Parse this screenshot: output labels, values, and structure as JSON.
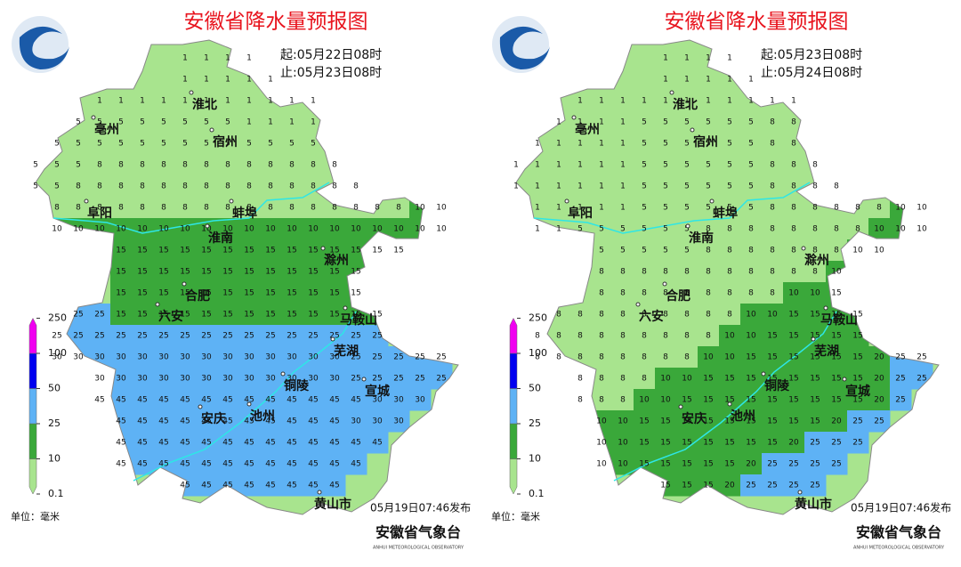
{
  "panels": [
    {
      "title": "安徽省降水量预报图",
      "start": "起:05月22日08时",
      "end": "止:05月23日08时",
      "cities": [
        "淮北",
        "亳州",
        "宿州",
        "阜阳",
        "蚌埠",
        "淮南",
        "滁州",
        "合肥",
        "六安",
        "马鞍山",
        "芜湖",
        "铜陵",
        "宣城",
        "安庆",
        "池州",
        "黄山市"
      ],
      "legend": {
        "levels": [
          0.1,
          10,
          25,
          50,
          100,
          250
        ],
        "colors": [
          "#a8e48e",
          "#3aa83a",
          "#5eb2f5",
          "#0000f0",
          "#f000f0"
        ]
      },
      "unit": "单位：毫米",
      "issued": "05月19日07:46发布",
      "agency": "安徽省气象台",
      "agency_en": "ANHUI METEOROLOGICAL OBSERVATORY",
      "grid": [
        [
          null,
          null,
          null,
          null,
          null,
          null,
          null,
          1,
          1,
          1,
          1,
          null,
          null,
          null,
          null,
          null,
          null,
          null,
          null,
          null
        ],
        [
          null,
          null,
          null,
          null,
          null,
          null,
          null,
          1,
          1,
          1,
          1,
          1,
          null,
          null,
          null,
          null,
          null,
          null,
          null,
          null
        ],
        [
          null,
          null,
          null,
          1,
          1,
          1,
          1,
          1,
          1,
          1,
          1,
          1,
          1,
          1,
          null,
          null,
          null,
          null,
          null,
          null
        ],
        [
          null,
          null,
          5,
          5,
          5,
          5,
          5,
          5,
          5,
          5,
          1,
          1,
          1,
          1,
          null,
          null,
          null,
          null,
          null,
          null
        ],
        [
          null,
          5,
          5,
          5,
          5,
          5,
          5,
          5,
          5,
          5,
          5,
          5,
          5,
          5,
          null,
          null,
          null,
          null,
          null,
          null
        ],
        [
          5,
          5,
          5,
          8,
          8,
          8,
          8,
          8,
          8,
          8,
          8,
          8,
          8,
          8,
          8,
          null,
          null,
          null,
          null,
          null
        ],
        [
          5,
          5,
          8,
          8,
          8,
          8,
          8,
          8,
          8,
          8,
          8,
          8,
          8,
          8,
          8,
          8,
          null,
          null,
          null,
          null
        ],
        [
          null,
          8,
          8,
          8,
          8,
          8,
          8,
          8,
          8,
          8,
          8,
          8,
          8,
          8,
          8,
          8,
          8,
          8,
          10,
          10
        ],
        [
          null,
          10,
          10,
          10,
          10,
          10,
          10,
          10,
          10,
          10,
          10,
          10,
          10,
          10,
          10,
          10,
          10,
          10,
          10,
          10
        ],
        [
          null,
          null,
          null,
          null,
          15,
          15,
          15,
          15,
          15,
          15,
          15,
          15,
          15,
          15,
          15,
          15,
          15,
          15,
          null,
          null
        ],
        [
          null,
          null,
          null,
          null,
          15,
          15,
          15,
          15,
          15,
          15,
          15,
          15,
          15,
          15,
          15,
          15,
          null,
          null,
          null,
          null
        ],
        [
          null,
          null,
          null,
          null,
          15,
          15,
          15,
          15,
          15,
          15,
          15,
          15,
          15,
          15,
          15,
          15,
          null,
          null,
          null,
          null
        ],
        [
          null,
          null,
          25,
          25,
          15,
          15,
          15,
          15,
          15,
          15,
          15,
          15,
          15,
          15,
          15,
          15,
          15,
          null,
          null,
          null
        ],
        [
          null,
          25,
          25,
          25,
          25,
          25,
          25,
          25,
          25,
          25,
          25,
          25,
          25,
          25,
          25,
          25,
          25,
          null,
          null,
          null
        ],
        [
          null,
          30,
          30,
          30,
          30,
          30,
          30,
          30,
          30,
          30,
          30,
          30,
          30,
          30,
          30,
          25,
          25,
          25,
          25,
          25
        ],
        [
          null,
          null,
          null,
          30,
          30,
          30,
          30,
          30,
          30,
          30,
          30,
          30,
          30,
          30,
          30,
          25,
          25,
          25,
          25,
          25
        ],
        [
          null,
          null,
          null,
          45,
          45,
          45,
          45,
          45,
          45,
          45,
          45,
          45,
          45,
          45,
          45,
          45,
          30,
          30,
          30,
          null
        ],
        [
          null,
          null,
          null,
          null,
          45,
          45,
          45,
          45,
          45,
          45,
          45,
          45,
          45,
          45,
          45,
          30,
          30,
          30,
          null,
          null
        ],
        [
          null,
          null,
          null,
          null,
          45,
          45,
          45,
          45,
          45,
          45,
          45,
          45,
          45,
          45,
          45,
          45,
          45,
          null,
          null,
          null
        ],
        [
          null,
          null,
          null,
          null,
          45,
          45,
          45,
          45,
          45,
          45,
          45,
          45,
          45,
          45,
          45,
          45,
          null,
          null,
          null,
          null
        ],
        [
          null,
          null,
          null,
          null,
          null,
          null,
          null,
          45,
          45,
          45,
          45,
          45,
          45,
          45,
          45,
          null,
          null,
          null,
          null,
          null
        ]
      ]
    },
    {
      "title": "安徽省降水量预报图",
      "start": "起:05月23日08时",
      "end": "止:05月24日08时",
      "cities": [
        "淮北",
        "亳州",
        "宿州",
        "阜阳",
        "蚌埠",
        "淮南",
        "滁州",
        "合肥",
        "六安",
        "马鞍山",
        "芜湖",
        "铜陵",
        "宣城",
        "安庆",
        "池州",
        "黄山市"
      ],
      "legend": {
        "levels": [
          0.1,
          10,
          25,
          50,
          100,
          250
        ],
        "colors": [
          "#a8e48e",
          "#3aa83a",
          "#5eb2f5",
          "#0000f0",
          "#f000f0"
        ]
      },
      "unit": "单位：毫米",
      "issued": "05月19日07:46发布",
      "agency": "安徽省气象台",
      "agency_en": "ANHUI METEOROLOGICAL OBSERVATORY",
      "grid": [
        [
          null,
          null,
          null,
          null,
          null,
          null,
          null,
          1,
          1,
          1,
          1,
          null,
          null,
          null,
          null,
          null,
          null,
          null,
          null,
          null
        ],
        [
          null,
          null,
          null,
          null,
          null,
          null,
          null,
          1,
          1,
          1,
          1,
          1,
          null,
          null,
          null,
          null,
          null,
          null,
          null,
          null
        ],
        [
          null,
          null,
          null,
          1,
          1,
          1,
          1,
          1,
          1,
          1,
          1,
          1,
          1,
          1,
          null,
          null,
          null,
          null,
          null,
          null
        ],
        [
          null,
          null,
          1,
          1,
          1,
          1,
          5,
          5,
          5,
          5,
          5,
          5,
          8,
          8,
          null,
          null,
          null,
          null,
          null,
          null
        ],
        [
          null,
          1,
          1,
          1,
          1,
          1,
          5,
          5,
          5,
          5,
          5,
          5,
          8,
          8,
          null,
          null,
          null,
          null,
          null,
          null
        ],
        [
          1,
          1,
          1,
          1,
          1,
          1,
          5,
          5,
          5,
          5,
          5,
          5,
          8,
          8,
          8,
          null,
          null,
          null,
          null,
          null
        ],
        [
          1,
          1,
          1,
          1,
          1,
          1,
          5,
          5,
          5,
          5,
          5,
          5,
          8,
          8,
          8,
          8,
          null,
          null,
          null,
          null
        ],
        [
          null,
          1,
          1,
          1,
          1,
          1,
          5,
          5,
          5,
          5,
          5,
          5,
          8,
          8,
          8,
          8,
          8,
          8,
          10,
          10
        ],
        [
          null,
          1,
          1,
          5,
          5,
          5,
          5,
          5,
          5,
          8,
          8,
          8,
          8,
          8,
          8,
          8,
          8,
          10,
          10,
          10
        ],
        [
          null,
          null,
          null,
          null,
          5,
          5,
          5,
          5,
          5,
          8,
          8,
          8,
          8,
          8,
          8,
          8,
          10,
          10,
          null,
          null
        ],
        [
          null,
          null,
          null,
          null,
          8,
          8,
          8,
          8,
          8,
          8,
          8,
          8,
          8,
          8,
          8,
          10,
          null,
          null,
          null,
          null
        ],
        [
          null,
          null,
          null,
          null,
          8,
          8,
          8,
          8,
          8,
          8,
          8,
          8,
          8,
          10,
          10,
          15,
          null,
          null,
          null,
          null
        ],
        [
          null,
          null,
          8,
          8,
          8,
          8,
          8,
          8,
          8,
          8,
          8,
          10,
          10,
          15,
          15,
          15,
          15,
          null,
          null,
          null
        ],
        [
          null,
          8,
          8,
          8,
          8,
          8,
          8,
          8,
          8,
          8,
          10,
          10,
          15,
          15,
          15,
          15,
          15,
          null,
          null,
          null
        ],
        [
          null,
          8,
          8,
          8,
          8,
          8,
          8,
          8,
          8,
          10,
          10,
          15,
          15,
          15,
          15,
          15,
          15,
          20,
          25,
          25
        ],
        [
          null,
          null,
          null,
          8,
          8,
          8,
          8,
          10,
          10,
          15,
          15,
          15,
          15,
          15,
          15,
          15,
          15,
          20,
          25,
          25
        ],
        [
          null,
          null,
          null,
          8,
          8,
          8,
          10,
          10,
          15,
          15,
          15,
          15,
          15,
          15,
          15,
          15,
          15,
          20,
          25,
          null
        ],
        [
          null,
          null,
          null,
          null,
          10,
          10,
          15,
          15,
          15,
          15,
          15,
          15,
          15,
          15,
          15,
          20,
          25,
          25,
          null,
          null
        ],
        [
          null,
          null,
          null,
          null,
          10,
          10,
          15,
          15,
          15,
          15,
          15,
          15,
          15,
          20,
          25,
          25,
          25,
          null,
          null,
          null
        ],
        [
          null,
          null,
          null,
          null,
          10,
          10,
          15,
          15,
          15,
          15,
          15,
          20,
          25,
          25,
          25,
          25,
          null,
          null,
          null,
          null
        ],
        [
          null,
          null,
          null,
          null,
          null,
          null,
          null,
          15,
          15,
          15,
          20,
          25,
          25,
          25,
          25,
          null,
          null,
          null,
          null,
          null
        ]
      ]
    }
  ]
}
